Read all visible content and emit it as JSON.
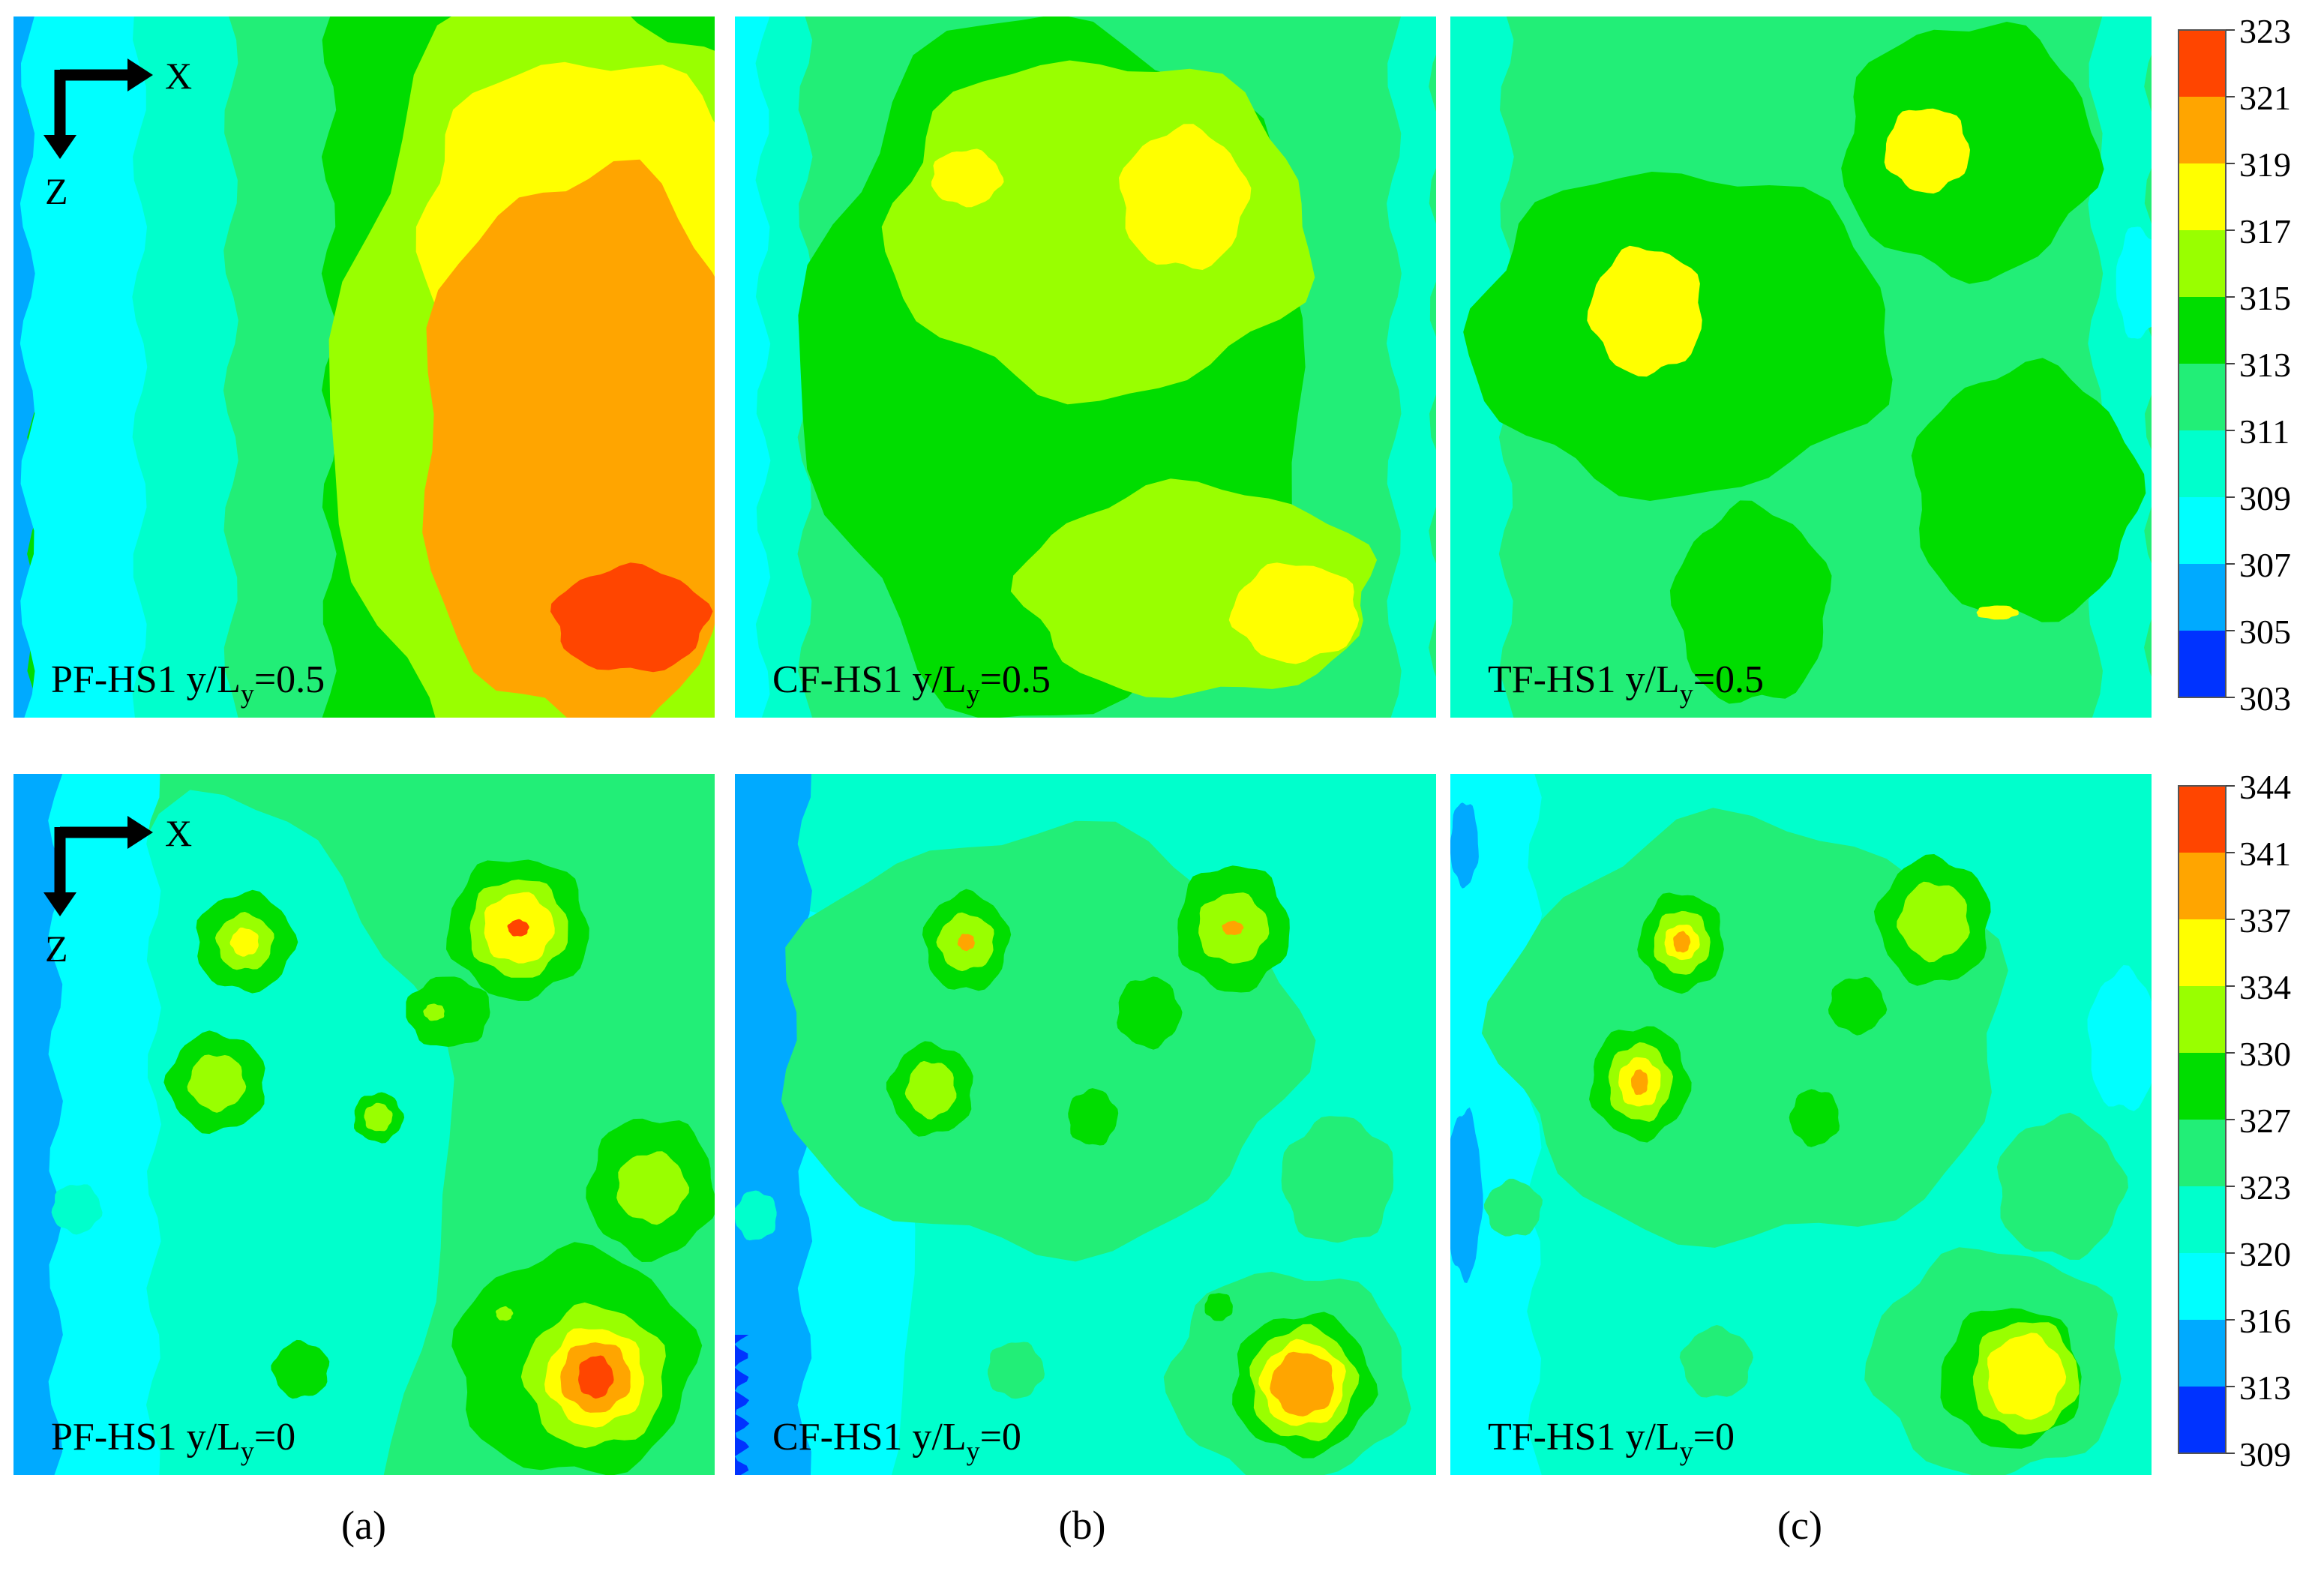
{
  "figure": {
    "subfigure_captions": [
      "(a)",
      "(b)",
      "(c)"
    ],
    "axis_indicator": {
      "x_label": "X",
      "z_label": "Z"
    }
  },
  "chart_data": [
    {
      "type": "heatmap",
      "panel_label": "PF-HS1 y/L",
      "subscript": "y",
      "suffix": "=0.5",
      "row": "top",
      "column": "a",
      "background_level": 5,
      "layers": [
        {
          "level": 1,
          "shape": "rect",
          "cx": 0.015,
          "cy": 0.5,
          "rx": 0.015,
          "ry": 0.5
        },
        {
          "level": 2,
          "shape": "rect",
          "cx": 0.12,
          "cy": 0.5,
          "rx": 0.1,
          "ry": 0.5
        },
        {
          "level": 3,
          "shape": "rect",
          "cx": 0.26,
          "cy": 0.5,
          "rx": 0.08,
          "ry": 0.5
        },
        {
          "level": 4,
          "shape": "rect",
          "cx": 0.38,
          "cy": 0.5,
          "rx": 0.07,
          "ry": 0.5
        },
        {
          "level": 6,
          "shape": "blob",
          "cx": 0.8,
          "cy": 0.55,
          "rx": 0.34,
          "ry": 0.6
        },
        {
          "level": 7,
          "shape": "blob",
          "cx": 0.82,
          "cy": 0.3,
          "rx": 0.24,
          "ry": 0.24
        },
        {
          "level": 8,
          "shape": "blob",
          "cx": 0.82,
          "cy": 0.62,
          "rx": 0.24,
          "ry": 0.4
        },
        {
          "level": 9,
          "shape": "blob",
          "cx": 0.88,
          "cy": 0.86,
          "rx": 0.11,
          "ry": 0.075
        }
      ]
    },
    {
      "type": "heatmap",
      "panel_label": "CF-HS1 y/L",
      "subscript": "y",
      "suffix": "=0.5",
      "row": "top",
      "column": "b",
      "background_level": 4,
      "layers": [
        {
          "level": 3,
          "shape": "rect",
          "cx": 0.05,
          "cy": 0.5,
          "rx": 0.05,
          "ry": 0.5
        },
        {
          "level": 3,
          "shape": "rect",
          "cx": 0.97,
          "cy": 0.5,
          "rx": 0.03,
          "ry": 0.5
        },
        {
          "level": 2,
          "shape": "rect",
          "cx": 0.02,
          "cy": 0.5,
          "rx": 0.02,
          "ry": 0.5
        },
        {
          "level": 5,
          "shape": "blob",
          "cx": 0.46,
          "cy": 0.5,
          "rx": 0.36,
          "ry": 0.5
        },
        {
          "level": 6,
          "shape": "blob",
          "cx": 0.52,
          "cy": 0.3,
          "rx": 0.3,
          "ry": 0.24
        },
        {
          "level": 7,
          "shape": "blob",
          "cx": 0.33,
          "cy": 0.23,
          "rx": 0.05,
          "ry": 0.04
        },
        {
          "level": 7,
          "shape": "blob",
          "cx": 0.64,
          "cy": 0.26,
          "rx": 0.09,
          "ry": 0.1
        },
        {
          "level": 6,
          "shape": "blob",
          "cx": 0.66,
          "cy": 0.82,
          "rx": 0.25,
          "ry": 0.15
        },
        {
          "level": 7,
          "shape": "blob",
          "cx": 0.8,
          "cy": 0.85,
          "rx": 0.09,
          "ry": 0.07
        }
      ]
    },
    {
      "type": "heatmap",
      "panel_label": "TF-HS1 y/L",
      "subscript": "y",
      "suffix": "=0.5",
      "row": "top",
      "column": "c",
      "background_level": 4,
      "layers": [
        {
          "level": 3,
          "shape": "rect",
          "cx": 0.04,
          "cy": 0.5,
          "rx": 0.04,
          "ry": 0.5
        },
        {
          "level": 3,
          "shape": "rect",
          "cx": 0.96,
          "cy": 0.5,
          "rx": 0.04,
          "ry": 0.5
        },
        {
          "level": 2,
          "shape": "blob",
          "cx": 0.98,
          "cy": 0.38,
          "rx": 0.03,
          "ry": 0.08
        },
        {
          "level": 5,
          "shape": "blob",
          "cx": 0.33,
          "cy": 0.45,
          "rx": 0.3,
          "ry": 0.23
        },
        {
          "level": 5,
          "shape": "blob",
          "cx": 0.74,
          "cy": 0.19,
          "rx": 0.18,
          "ry": 0.18
        },
        {
          "level": 5,
          "shape": "blob",
          "cx": 0.82,
          "cy": 0.68,
          "rx": 0.16,
          "ry": 0.18
        },
        {
          "level": 5,
          "shape": "blob",
          "cx": 0.43,
          "cy": 0.84,
          "rx": 0.11,
          "ry": 0.14
        },
        {
          "level": 7,
          "shape": "blob",
          "cx": 0.28,
          "cy": 0.42,
          "rx": 0.08,
          "ry": 0.09
        },
        {
          "level": 7,
          "shape": "blob",
          "cx": 0.68,
          "cy": 0.19,
          "rx": 0.06,
          "ry": 0.06
        },
        {
          "level": 7,
          "shape": "blob",
          "cx": 0.78,
          "cy": 0.85,
          "rx": 0.03,
          "ry": 0.01
        }
      ]
    },
    {
      "type": "heatmap",
      "panel_label": "PF-HS1 y/L",
      "subscript": "y",
      "suffix": "=0",
      "row": "bottom",
      "column": "a",
      "background_level": 4,
      "layers": [
        {
          "level": 3,
          "shape": "blob",
          "cx": 0.3,
          "cy": 0.6,
          "rx": 0.32,
          "ry": 0.55
        },
        {
          "level": 2,
          "shape": "rect",
          "cx": 0.1,
          "cy": 0.5,
          "rx": 0.1,
          "ry": 0.5
        },
        {
          "level": 1,
          "shape": "rect",
          "cx": 0.03,
          "cy": 0.5,
          "rx": 0.03,
          "ry": 0.5
        },
        {
          "level": 3,
          "shape": "blob",
          "cx": 0.09,
          "cy": 0.62,
          "rx": 0.035,
          "ry": 0.035
        },
        {
          "level": 5,
          "shape": "blob",
          "cx": 0.33,
          "cy": 0.24,
          "rx": 0.07,
          "ry": 0.07
        },
        {
          "level": 6,
          "shape": "blob",
          "cx": 0.33,
          "cy": 0.24,
          "rx": 0.04,
          "ry": 0.04
        },
        {
          "level": 7,
          "shape": "blob",
          "cx": 0.33,
          "cy": 0.24,
          "rx": 0.02,
          "ry": 0.02
        },
        {
          "level": 5,
          "shape": "blob",
          "cx": 0.72,
          "cy": 0.22,
          "rx": 0.1,
          "ry": 0.1
        },
        {
          "level": 6,
          "shape": "blob",
          "cx": 0.72,
          "cy": 0.22,
          "rx": 0.07,
          "ry": 0.07
        },
        {
          "level": 7,
          "shape": "blob",
          "cx": 0.72,
          "cy": 0.22,
          "rx": 0.05,
          "ry": 0.05
        },
        {
          "level": 9,
          "shape": "blob",
          "cx": 0.72,
          "cy": 0.22,
          "rx": 0.015,
          "ry": 0.012
        },
        {
          "level": 5,
          "shape": "blob",
          "cx": 0.29,
          "cy": 0.44,
          "rx": 0.07,
          "ry": 0.07
        },
        {
          "level": 6,
          "shape": "blob",
          "cx": 0.29,
          "cy": 0.44,
          "rx": 0.04,
          "ry": 0.04
        },
        {
          "level": 5,
          "shape": "blob",
          "cx": 0.52,
          "cy": 0.49,
          "rx": 0.035,
          "ry": 0.035
        },
        {
          "level": 6,
          "shape": "blob",
          "cx": 0.52,
          "cy": 0.49,
          "rx": 0.02,
          "ry": 0.02
        },
        {
          "level": 5,
          "shape": "blob",
          "cx": 0.62,
          "cy": 0.34,
          "rx": 0.06,
          "ry": 0.05
        },
        {
          "level": 6,
          "shape": "blob",
          "cx": 0.6,
          "cy": 0.34,
          "rx": 0.015,
          "ry": 0.012
        },
        {
          "level": 5,
          "shape": "blob",
          "cx": 0.91,
          "cy": 0.59,
          "rx": 0.09,
          "ry": 0.1
        },
        {
          "level": 6,
          "shape": "blob",
          "cx": 0.91,
          "cy": 0.59,
          "rx": 0.05,
          "ry": 0.05
        },
        {
          "level": 5,
          "shape": "blob",
          "cx": 0.8,
          "cy": 0.84,
          "rx": 0.17,
          "ry": 0.16
        },
        {
          "level": 6,
          "shape": "blob",
          "cx": 0.83,
          "cy": 0.86,
          "rx": 0.1,
          "ry": 0.1
        },
        {
          "level": 7,
          "shape": "blob",
          "cx": 0.83,
          "cy": 0.86,
          "rx": 0.07,
          "ry": 0.07
        },
        {
          "level": 8,
          "shape": "blob",
          "cx": 0.83,
          "cy": 0.86,
          "rx": 0.05,
          "ry": 0.05
        },
        {
          "level": 9,
          "shape": "blob",
          "cx": 0.83,
          "cy": 0.86,
          "rx": 0.025,
          "ry": 0.03
        },
        {
          "level": 6,
          "shape": "blob",
          "cx": 0.7,
          "cy": 0.77,
          "rx": 0.012,
          "ry": 0.01
        },
        {
          "level": 5,
          "shape": "blob",
          "cx": 0.41,
          "cy": 0.85,
          "rx": 0.04,
          "ry": 0.04
        }
      ]
    },
    {
      "type": "heatmap",
      "panel_label": "CF-HS1 y/L",
      "subscript": "y",
      "suffix": "=0",
      "row": "bottom",
      "column": "b",
      "background_level": 3,
      "layers": [
        {
          "level": 2,
          "shape": "blob",
          "cx": 0.12,
          "cy": 0.65,
          "rx": 0.14,
          "ry": 0.45
        },
        {
          "level": 1,
          "shape": "rect",
          "cx": 0.05,
          "cy": 0.5,
          "rx": 0.05,
          "ry": 0.5
        },
        {
          "level": 0,
          "shape": "rect",
          "cx": 0.005,
          "cy": 0.9,
          "rx": 0.005,
          "ry": 0.1
        },
        {
          "level": 4,
          "shape": "blob",
          "cx": 0.43,
          "cy": 0.38,
          "rx": 0.37,
          "ry": 0.3
        },
        {
          "level": 5,
          "shape": "blob",
          "cx": 0.33,
          "cy": 0.24,
          "rx": 0.06,
          "ry": 0.07
        },
        {
          "level": 6,
          "shape": "blob",
          "cx": 0.33,
          "cy": 0.24,
          "rx": 0.04,
          "ry": 0.04
        },
        {
          "level": 8,
          "shape": "blob",
          "cx": 0.33,
          "cy": 0.24,
          "rx": 0.012,
          "ry": 0.012
        },
        {
          "level": 5,
          "shape": "blob",
          "cx": 0.71,
          "cy": 0.22,
          "rx": 0.08,
          "ry": 0.09
        },
        {
          "level": 6,
          "shape": "blob",
          "cx": 0.71,
          "cy": 0.22,
          "rx": 0.05,
          "ry": 0.05
        },
        {
          "level": 8,
          "shape": "blob",
          "cx": 0.71,
          "cy": 0.22,
          "rx": 0.015,
          "ry": 0.01
        },
        {
          "level": 5,
          "shape": "blob",
          "cx": 0.28,
          "cy": 0.45,
          "rx": 0.06,
          "ry": 0.065
        },
        {
          "level": 6,
          "shape": "blob",
          "cx": 0.28,
          "cy": 0.45,
          "rx": 0.035,
          "ry": 0.04
        },
        {
          "level": 5,
          "shape": "blob",
          "cx": 0.59,
          "cy": 0.34,
          "rx": 0.045,
          "ry": 0.05
        },
        {
          "level": 5,
          "shape": "blob",
          "cx": 0.51,
          "cy": 0.49,
          "rx": 0.035,
          "ry": 0.04
        },
        {
          "level": 4,
          "shape": "blob",
          "cx": 0.86,
          "cy": 0.58,
          "rx": 0.08,
          "ry": 0.09
        },
        {
          "level": 3,
          "shape": "blob",
          "cx": 0.03,
          "cy": 0.63,
          "rx": 0.03,
          "ry": 0.035
        },
        {
          "level": 4,
          "shape": "blob",
          "cx": 0.79,
          "cy": 0.86,
          "rx": 0.17,
          "ry": 0.15
        },
        {
          "level": 5,
          "shape": "blob",
          "cx": 0.81,
          "cy": 0.87,
          "rx": 0.1,
          "ry": 0.1
        },
        {
          "level": 6,
          "shape": "blob",
          "cx": 0.81,
          "cy": 0.87,
          "rx": 0.075,
          "ry": 0.08
        },
        {
          "level": 7,
          "shape": "blob",
          "cx": 0.81,
          "cy": 0.87,
          "rx": 0.06,
          "ry": 0.06
        },
        {
          "level": 8,
          "shape": "blob",
          "cx": 0.81,
          "cy": 0.87,
          "rx": 0.045,
          "ry": 0.045
        },
        {
          "level": 5,
          "shape": "blob",
          "cx": 0.69,
          "cy": 0.76,
          "rx": 0.02,
          "ry": 0.02
        },
        {
          "level": 4,
          "shape": "blob",
          "cx": 0.4,
          "cy": 0.85,
          "rx": 0.04,
          "ry": 0.04
        }
      ]
    },
    {
      "type": "heatmap",
      "panel_label": "TF-HS1 y/L",
      "subscript": "y",
      "suffix": "=0",
      "row": "bottom",
      "column": "c",
      "background_level": 3,
      "layers": [
        {
          "level": 2,
          "shape": "rect",
          "cx": 0.06,
          "cy": 0.5,
          "rx": 0.06,
          "ry": 0.5
        },
        {
          "level": 1,
          "shape": "blob",
          "cx": 0.02,
          "cy": 0.1,
          "rx": 0.02,
          "ry": 0.06
        },
        {
          "level": 1,
          "shape": "blob",
          "cx": 0.02,
          "cy": 0.6,
          "rx": 0.025,
          "ry": 0.12
        },
        {
          "level": 2,
          "shape": "blob",
          "cx": 0.96,
          "cy": 0.38,
          "rx": 0.05,
          "ry": 0.1
        },
        {
          "level": 4,
          "shape": "blob",
          "cx": 0.43,
          "cy": 0.37,
          "rx": 0.36,
          "ry": 0.3
        },
        {
          "level": 5,
          "shape": "blob",
          "cx": 0.33,
          "cy": 0.24,
          "rx": 0.06,
          "ry": 0.07
        },
        {
          "level": 6,
          "shape": "blob",
          "cx": 0.33,
          "cy": 0.24,
          "rx": 0.04,
          "ry": 0.045
        },
        {
          "level": 7,
          "shape": "blob",
          "cx": 0.33,
          "cy": 0.24,
          "rx": 0.025,
          "ry": 0.025
        },
        {
          "level": 8,
          "shape": "blob",
          "cx": 0.33,
          "cy": 0.24,
          "rx": 0.012,
          "ry": 0.015
        },
        {
          "level": 5,
          "shape": "blob",
          "cx": 0.69,
          "cy": 0.21,
          "rx": 0.08,
          "ry": 0.09
        },
        {
          "level": 6,
          "shape": "blob",
          "cx": 0.69,
          "cy": 0.21,
          "rx": 0.05,
          "ry": 0.055
        },
        {
          "level": 5,
          "shape": "blob",
          "cx": 0.27,
          "cy": 0.44,
          "rx": 0.07,
          "ry": 0.08
        },
        {
          "level": 6,
          "shape": "blob",
          "cx": 0.27,
          "cy": 0.44,
          "rx": 0.045,
          "ry": 0.055
        },
        {
          "level": 7,
          "shape": "blob",
          "cx": 0.27,
          "cy": 0.44,
          "rx": 0.03,
          "ry": 0.035
        },
        {
          "level": 8,
          "shape": "blob",
          "cx": 0.27,
          "cy": 0.44,
          "rx": 0.012,
          "ry": 0.018
        },
        {
          "level": 5,
          "shape": "blob",
          "cx": 0.52,
          "cy": 0.49,
          "rx": 0.035,
          "ry": 0.04
        },
        {
          "level": 5,
          "shape": "blob",
          "cx": 0.58,
          "cy": 0.33,
          "rx": 0.04,
          "ry": 0.04
        },
        {
          "level": 4,
          "shape": "blob",
          "cx": 0.87,
          "cy": 0.59,
          "rx": 0.09,
          "ry": 0.1
        },
        {
          "level": 4,
          "shape": "blob",
          "cx": 0.09,
          "cy": 0.62,
          "rx": 0.04,
          "ry": 0.04
        },
        {
          "level": 4,
          "shape": "blob",
          "cx": 0.78,
          "cy": 0.84,
          "rx": 0.18,
          "ry": 0.16
        },
        {
          "level": 5,
          "shape": "blob",
          "cx": 0.8,
          "cy": 0.86,
          "rx": 0.1,
          "ry": 0.1
        },
        {
          "level": 6,
          "shape": "blob",
          "cx": 0.82,
          "cy": 0.86,
          "rx": 0.075,
          "ry": 0.08
        },
        {
          "level": 7,
          "shape": "blob",
          "cx": 0.82,
          "cy": 0.86,
          "rx": 0.055,
          "ry": 0.06
        },
        {
          "level": 4,
          "shape": "blob",
          "cx": 0.38,
          "cy": 0.84,
          "rx": 0.05,
          "ry": 0.05
        }
      ]
    },
    {
      "type": "colorbar",
      "row": "top",
      "ticks": [
        "323",
        "321",
        "319",
        "317",
        "315",
        "313",
        "311",
        "309",
        "307",
        "305",
        "303"
      ],
      "colors": [
        "#ff4500",
        "#ffa500",
        "#ffff00",
        "#99ff00",
        "#00dd00",
        "#22ee77",
        "#00ffcc",
        "#00ffff",
        "#00aaff",
        "#0033ff"
      ]
    },
    {
      "type": "colorbar",
      "row": "bottom",
      "ticks": [
        "344",
        "341",
        "337",
        "334",
        "330",
        "327",
        "323",
        "320",
        "316",
        "313",
        "309"
      ],
      "colors": [
        "#ff4500",
        "#ffa500",
        "#ffff00",
        "#99ff00",
        "#00dd00",
        "#22ee77",
        "#00ffcc",
        "#00ffff",
        "#00aaff",
        "#0033ff"
      ]
    }
  ],
  "palette": [
    "#0033ff",
    "#00aaff",
    "#00ffff",
    "#00ffcc",
    "#22ee77",
    "#00dd00",
    "#99ff00",
    "#ffff00",
    "#ffa500",
    "#ff4500"
  ]
}
